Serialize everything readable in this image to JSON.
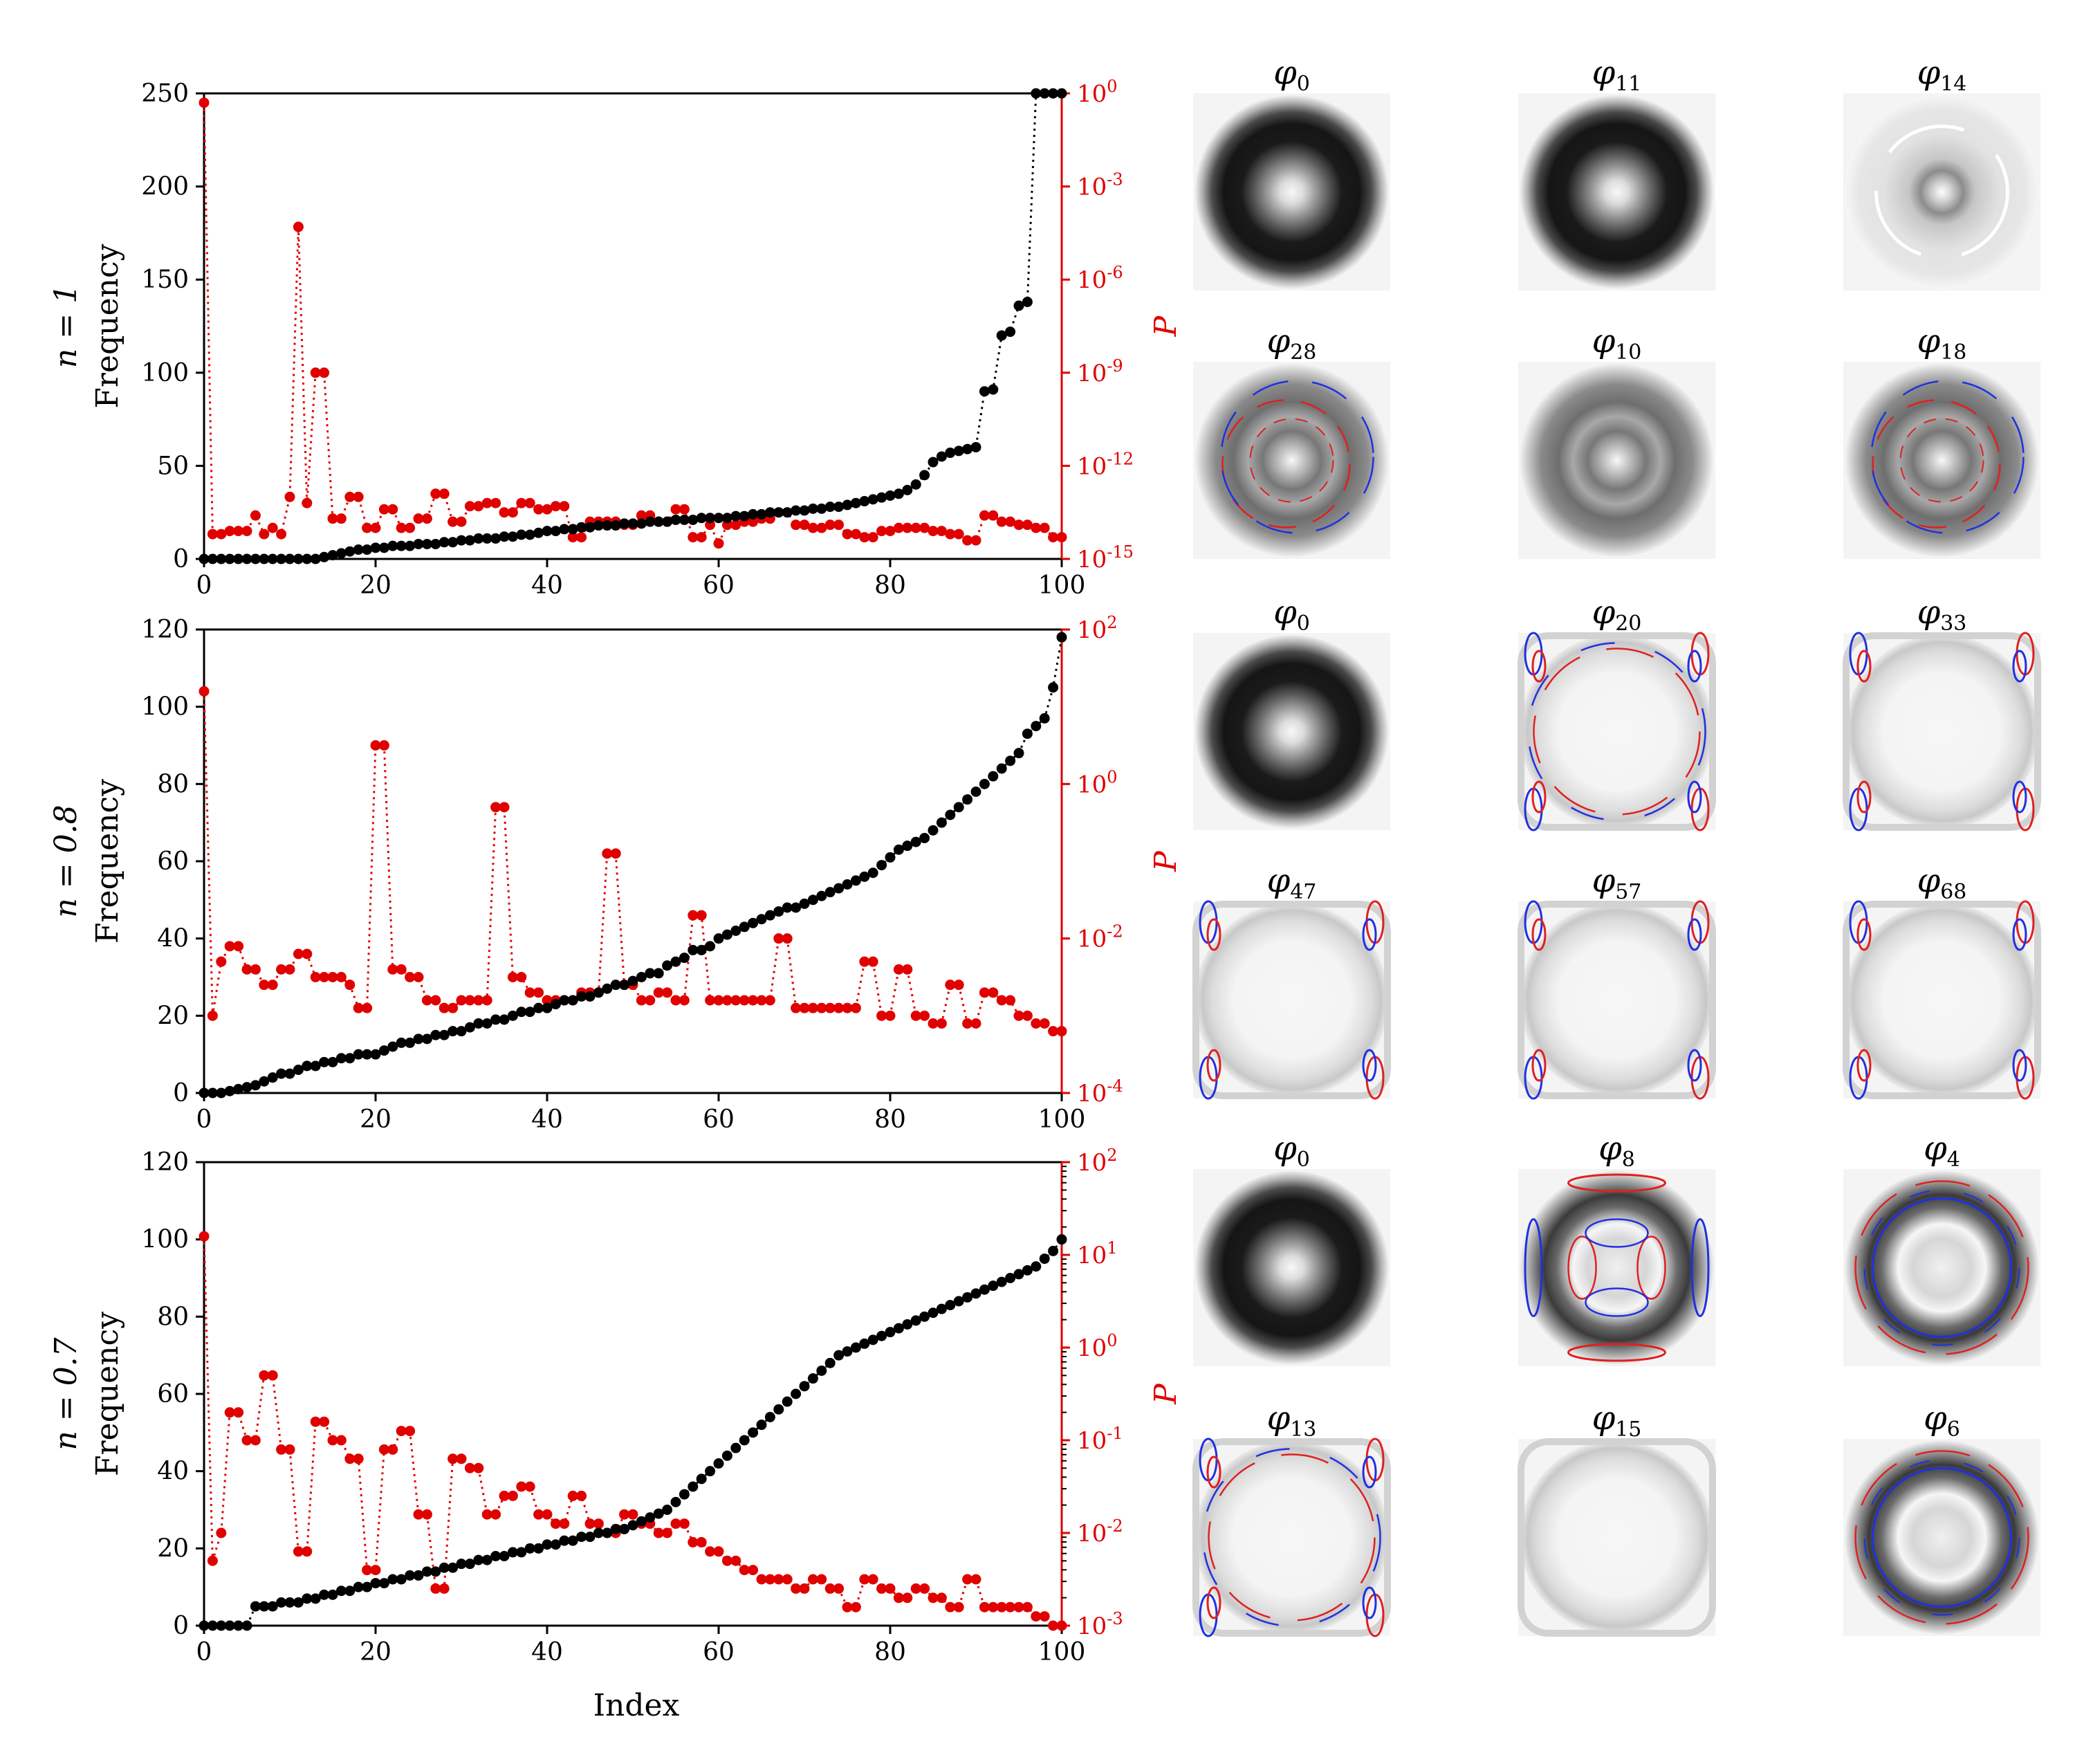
{
  "colors": {
    "frequency": "#000000",
    "power": "#e00000",
    "mode_dark": "#141414",
    "mode_light": "#f4f4f4",
    "contour_red": "#e02020",
    "contour_blue": "#2030e0"
  },
  "xlabel": "Index",
  "chart_data": [
    {
      "type": "scatter",
      "row_label": "n = 1",
      "ylabel": "Frequency",
      "y2label": "P",
      "xlim": [
        0,
        100
      ],
      "ylim": [
        0,
        250
      ],
      "y2lim_log10": [
        -15,
        0
      ],
      "xticks": [
        "0",
        "20",
        "40",
        "60",
        "80",
        "100"
      ],
      "yticks": [
        "0",
        "50",
        "100",
        "150",
        "200",
        "250"
      ],
      "y2ticks": [
        "10-15",
        "10-12",
        "10-9",
        "10-6",
        "10-3",
        "100"
      ],
      "frequency": [
        0,
        0,
        0,
        0,
        0,
        0,
        0,
        0,
        0,
        0,
        0,
        0,
        0,
        0,
        1,
        2,
        3,
        4,
        5,
        5,
        6,
        6,
        7,
        7,
        7,
        8,
        8,
        8,
        9,
        9,
        10,
        10,
        11,
        11,
        11,
        12,
        12,
        13,
        13,
        14,
        15,
        15,
        16,
        16,
        17,
        17,
        18,
        18,
        18,
        19,
        19,
        19,
        20,
        20,
        20,
        21,
        21,
        21,
        22,
        22,
        22,
        22,
        23,
        23,
        24,
        24,
        25,
        25,
        25,
        26,
        26,
        27,
        27,
        28,
        28,
        29,
        30,
        31,
        32,
        33,
        34,
        35,
        37,
        40,
        45,
        52,
        55,
        57,
        58,
        59,
        60,
        90,
        91,
        120,
        122,
        136,
        138,
        250,
        250,
        250,
        250
      ],
      "power_log10": [
        -0.3,
        -14.2,
        -14.2,
        -14.1,
        -14.1,
        -14.1,
        -13.6,
        -14.2,
        -14.0,
        -14.2,
        -13.0,
        -4.3,
        -13.2,
        -9.0,
        -9.0,
        -13.7,
        -13.7,
        -13.0,
        -13.0,
        -14.0,
        -14.0,
        -13.4,
        -13.4,
        -14.0,
        -14.0,
        -13.7,
        -13.7,
        -12.9,
        -12.9,
        -13.8,
        -13.8,
        -13.3,
        -13.3,
        -13.2,
        -13.2,
        -13.5,
        -13.5,
        -13.2,
        -13.2,
        -13.4,
        -13.4,
        -13.3,
        -13.3,
        -14.3,
        -14.3,
        -13.8,
        -13.8,
        -13.8,
        -13.8,
        -13.9,
        -13.9,
        -13.6,
        -13.6,
        -13.8,
        -13.8,
        -13.4,
        -13.4,
        -14.3,
        -14.3,
        -13.9,
        -14.5,
        -13.9,
        -13.9,
        -13.8,
        -13.8,
        -13.7,
        -13.7,
        -13.5,
        -13.5,
        -13.9,
        -13.9,
        -14.0,
        -14.0,
        -13.9,
        -13.9,
        -14.2,
        -14.2,
        -14.3,
        -14.3,
        -14.1,
        -14.1,
        -14.0,
        -14.0,
        -14.0,
        -14.0,
        -14.1,
        -14.1,
        -14.2,
        -14.2,
        -14.4,
        -14.4,
        -13.6,
        -13.6,
        -13.8,
        -13.8,
        -13.9,
        -13.9,
        -14.0,
        -14.0,
        -14.3,
        -14.3
      ],
      "modes": [
        "0",
        "11",
        "14",
        "28",
        "10",
        "18"
      ]
    },
    {
      "type": "scatter",
      "row_label": "n = 0.8",
      "ylabel": "Frequency",
      "y2label": "P",
      "xlim": [
        0,
        100
      ],
      "ylim": [
        0,
        120
      ],
      "y2lim_log10": [
        -4,
        2
      ],
      "xticks": [
        "0",
        "20",
        "40",
        "60",
        "80",
        "100"
      ],
      "yticks": [
        "0",
        "20",
        "40",
        "60",
        "80",
        "100",
        "120"
      ],
      "y2ticks": [
        "10-4",
        "10-2",
        "100",
        "102"
      ],
      "frequency": [
        0,
        0,
        0,
        0.5,
        1,
        1.5,
        2,
        3,
        4,
        5,
        5,
        6,
        7,
        7,
        8,
        8,
        9,
        9,
        10,
        10,
        10,
        11,
        12,
        13,
        13,
        14,
        14,
        15,
        15,
        16,
        16,
        17,
        18,
        18,
        19,
        19,
        20,
        21,
        21,
        22,
        22,
        23,
        24,
        24,
        25,
        25,
        26,
        27,
        28,
        28,
        29,
        30,
        31,
        31,
        33,
        34,
        35,
        37,
        37,
        38,
        40,
        41,
        42,
        43,
        44,
        45,
        46,
        47,
        48,
        48,
        49,
        50,
        51,
        52,
        53,
        54,
        55,
        56,
        57,
        59,
        61,
        63,
        64,
        65,
        66,
        68,
        70,
        72,
        74,
        76,
        78,
        80,
        82,
        84,
        86,
        88,
        93,
        95,
        97,
        105,
        118
      ],
      "power_log10": [
        1.2,
        -3.0,
        -2.3,
        -2.1,
        -2.1,
        -2.4,
        -2.4,
        -2.6,
        -2.6,
        -2.4,
        -2.4,
        -2.2,
        -2.2,
        -2.5,
        -2.5,
        -2.5,
        -2.5,
        -2.6,
        -2.9,
        -2.9,
        0.5,
        0.5,
        -2.4,
        -2.4,
        -2.5,
        -2.5,
        -2.8,
        -2.8,
        -2.9,
        -2.9,
        -2.8,
        -2.8,
        -2.8,
        -2.8,
        -0.3,
        -0.3,
        -2.5,
        -2.5,
        -2.7,
        -2.7,
        -2.8,
        -2.8,
        -2.8,
        -2.8,
        -2.7,
        -2.7,
        -2.7,
        -0.9,
        -0.9,
        -2.6,
        -2.6,
        -2.8,
        -2.8,
        -2.7,
        -2.7,
        -2.8,
        -2.8,
        -1.7,
        -1.7,
        -2.8,
        -2.8,
        -2.8,
        -2.8,
        -2.8,
        -2.8,
        -2.8,
        -2.8,
        -2.0,
        -2.0,
        -2.9,
        -2.9,
        -2.9,
        -2.9,
        -2.9,
        -2.9,
        -2.9,
        -2.9,
        -2.3,
        -2.3,
        -3.0,
        -3.0,
        -2.4,
        -2.4,
        -3.0,
        -3.0,
        -3.1,
        -3.1,
        -2.6,
        -2.6,
        -3.1,
        -3.1,
        -2.7,
        -2.7,
        -2.8,
        -2.8,
        -3.0,
        -3.0,
        -3.1,
        -3.1,
        -3.2,
        -3.2
      ],
      "modes": [
        "0",
        "20",
        "33",
        "47",
        "57",
        "68"
      ]
    },
    {
      "type": "scatter",
      "row_label": "n = 0.7",
      "ylabel": "Frequency",
      "y2label": "P",
      "xlim": [
        0,
        100
      ],
      "ylim": [
        0,
        120
      ],
      "y2lim_log10": [
        -3,
        2
      ],
      "xticks": [
        "0",
        "20",
        "40",
        "60",
        "80",
        "100"
      ],
      "yticks": [
        "0",
        "20",
        "40",
        "60",
        "80",
        "100",
        "120"
      ],
      "y2ticks": [
        "10-3",
        "10-2",
        "10-1",
        "100",
        "101",
        "102"
      ],
      "frequency": [
        0,
        0,
        0,
        0,
        0,
        0,
        5,
        5,
        5,
        6,
        6,
        6,
        7,
        7,
        8,
        8,
        9,
        9,
        10,
        10,
        11,
        11,
        12,
        12,
        13,
        13,
        14,
        14,
        15,
        15,
        16,
        16,
        17,
        17,
        18,
        18,
        19,
        19,
        20,
        20,
        21,
        21,
        22,
        22,
        23,
        23,
        24,
        24,
        25,
        25,
        26,
        27,
        28,
        29,
        30,
        32,
        34,
        36,
        38,
        40,
        42,
        44,
        46,
        48,
        50,
        52,
        54,
        56,
        58,
        60,
        62,
        64,
        66,
        68,
        70,
        71,
        72,
        73,
        74,
        75,
        76,
        77,
        78,
        79,
        80,
        81,
        82,
        83,
        84,
        85,
        86,
        87,
        88,
        89,
        90,
        91,
        92,
        93,
        95,
        97,
        100
      ],
      "power_log10": [
        1.2,
        -2.3,
        -2.0,
        -0.7,
        -0.7,
        -1.0,
        -1.0,
        -0.3,
        -0.3,
        -1.1,
        -1.1,
        -2.2,
        -2.2,
        -0.8,
        -0.8,
        -1.0,
        -1.0,
        -1.2,
        -1.2,
        -2.4,
        -2.4,
        -1.1,
        -1.1,
        -0.9,
        -0.9,
        -1.8,
        -1.8,
        -2.6,
        -2.6,
        -1.2,
        -1.2,
        -1.3,
        -1.3,
        -1.8,
        -1.8,
        -1.6,
        -1.6,
        -1.5,
        -1.5,
        -1.8,
        -1.8,
        -1.9,
        -1.9,
        -1.6,
        -1.6,
        -1.9,
        -1.9,
        -2.0,
        -2.0,
        -1.8,
        -1.8,
        -1.9,
        -1.9,
        -2.0,
        -2.0,
        -1.9,
        -1.9,
        -2.1,
        -2.1,
        -2.2,
        -2.2,
        -2.3,
        -2.3,
        -2.4,
        -2.4,
        -2.5,
        -2.5,
        -2.5,
        -2.5,
        -2.6,
        -2.6,
        -2.5,
        -2.5,
        -2.6,
        -2.6,
        -2.8,
        -2.8,
        -2.5,
        -2.5,
        -2.6,
        -2.6,
        -2.7,
        -2.7,
        -2.6,
        -2.6,
        -2.7,
        -2.7,
        -2.8,
        -2.8,
        -2.5,
        -2.5,
        -2.8,
        -2.8,
        -2.8,
        -2.8,
        -2.8,
        -2.8,
        -2.9,
        -2.9,
        -3.0,
        -3.0
      ],
      "modes": [
        "0",
        "8",
        "4",
        "13",
        "15",
        "6"
      ]
    }
  ],
  "mode_symbol": "φ"
}
